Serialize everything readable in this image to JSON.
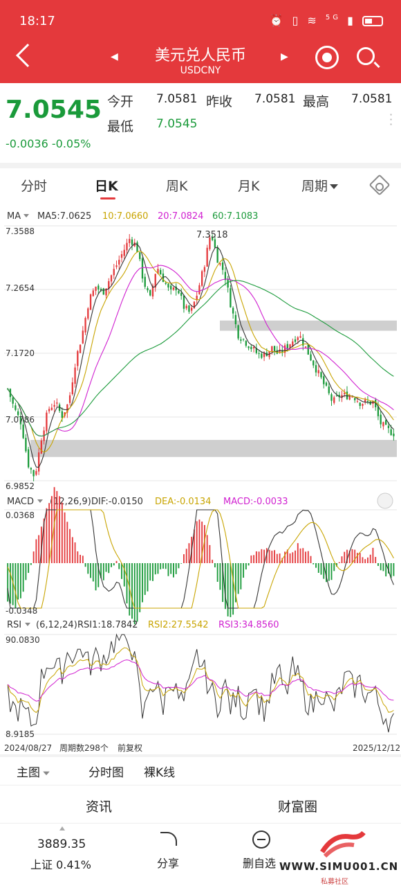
{
  "status_bar": {
    "time": "18:17",
    "network": "5G"
  },
  "header": {
    "title": "美元兑人民币",
    "subtitle": "USDCNY"
  },
  "quote": {
    "price": "7.0545",
    "change": "-0.0036",
    "change_pct": "-0.05%",
    "open_label": "今开",
    "open": "7.0581",
    "prev_close_label": "昨收",
    "prev_close": "7.0581",
    "high_label": "最高",
    "high": "7.0581",
    "low_label": "最低",
    "low": "7.0545"
  },
  "tabs": [
    {
      "label": "分时",
      "active": false
    },
    {
      "label": "日K",
      "active": true
    },
    {
      "label": "周K",
      "active": false
    },
    {
      "label": "月K",
      "active": false
    },
    {
      "label": "周期",
      "active": false
    }
  ],
  "chart_data": {
    "type": "candlestick",
    "main": {
      "indicator": "MA",
      "ma5": "MA5:7.0625",
      "ma10": "10:7.0660",
      "ma20": "20:7.0824",
      "ma60": "60:7.1083",
      "y_labels": [
        "7.3588",
        "7.2654",
        "7.1720",
        "7.0786",
        "6.9852"
      ],
      "peak_label": "7.3518",
      "ylim": [
        6.9852,
        7.3588
      ],
      "close_path": [
        7.12,
        7.09,
        7.07,
        7.01,
        6.99,
        7.05,
        7.09,
        7.1,
        7.08,
        7.1,
        7.16,
        7.2,
        7.25,
        7.27,
        7.26,
        7.28,
        7.3,
        7.32,
        7.34,
        7.33,
        7.28,
        7.25,
        7.3,
        7.28,
        7.26,
        7.27,
        7.24,
        7.23,
        7.26,
        7.3,
        7.35,
        7.31,
        7.29,
        7.24,
        7.2,
        7.19,
        7.18,
        7.17,
        7.17,
        7.18,
        7.17,
        7.18,
        7.19,
        7.2,
        7.18,
        7.16,
        7.14,
        7.12,
        7.1,
        7.11,
        7.11,
        7.11,
        7.1,
        7.1,
        7.1,
        7.07,
        7.06,
        7.055
      ],
      "ma_colors": {
        "ma5": "#333333",
        "ma10": "#c8a400",
        "ma20": "#d020d0",
        "ma60": "#1a9a3a"
      }
    },
    "macd": {
      "params": "(12,26,9)",
      "dif": "DIF:-0.0150",
      "dea": "DEA:-0.0134",
      "macd": "MACD:-0.0033",
      "y_labels": [
        "0.0368",
        "-0.0348"
      ],
      "histogram": [
        -0.012,
        -0.014,
        -0.01,
        -0.004,
        0.006,
        0.012,
        0.018,
        0.024,
        0.02,
        0.012,
        0.006,
        0.002,
        -0.004,
        -0.008,
        -0.005,
        -0.002,
        0.001,
        -0.006,
        -0.016,
        -0.02,
        -0.012,
        -0.006,
        -0.004,
        -0.002,
        -0.004,
        -0.003,
        0.002,
        0.008,
        0.014,
        0.012,
        0.004,
        -0.006,
        -0.014,
        -0.018,
        -0.01,
        -0.004,
        0.002,
        0.004,
        0.005,
        0.004,
        0.002,
        0.003,
        0.004,
        0.006,
        0.004,
        0.001,
        -0.003,
        -0.006,
        -0.004,
        0.001,
        0.004,
        0.005,
        0.003,
        0.002,
        0.004,
        -0.002,
        -0.004,
        -0.005
      ]
    },
    "rsi": {
      "params": "(6,12,24)",
      "rsi1": "RSI1:18.7842",
      "rsi2": "RSI2:27.5542",
      "rsi3": "RSI3:34.8560",
      "y_labels": [
        "90.0830",
        "8.9185"
      ],
      "rsi6": [
        40,
        28,
        30,
        22,
        15,
        55,
        70,
        62,
        60,
        78,
        72,
        80,
        64,
        72,
        70,
        78,
        86,
        85,
        88,
        60,
        20,
        52,
        46,
        32,
        58,
        40,
        34,
        50,
        74,
        60,
        44,
        32,
        50,
        30,
        40,
        24,
        55,
        36,
        28,
        48,
        60,
        40,
        62,
        54,
        38,
        30,
        46,
        38,
        28,
        42,
        56,
        46,
        52,
        40,
        44,
        30,
        22,
        19
      ]
    },
    "footer": {
      "start_date": "2024/08/27",
      "period_count": "周期数298个",
      "adjust": "前复权",
      "end_date": "2025/12/12"
    }
  },
  "bottom_options": {
    "main_chart": "主图",
    "intraday_chart": "分时图",
    "bare_k": "裸K线"
  },
  "news_tabs": [
    "资讯",
    "财富圈"
  ],
  "toolbar": {
    "index_value": "3889.35",
    "index_label": "上证 0.41%",
    "share": "分享",
    "remove_watch": "删自选"
  },
  "watermark": {
    "text": "WWW.SIMU001.CN",
    "sub": "私募社区"
  },
  "colors": {
    "accent": "#e4393c",
    "down": "#1a9a3a",
    "up": "#e4393c"
  }
}
